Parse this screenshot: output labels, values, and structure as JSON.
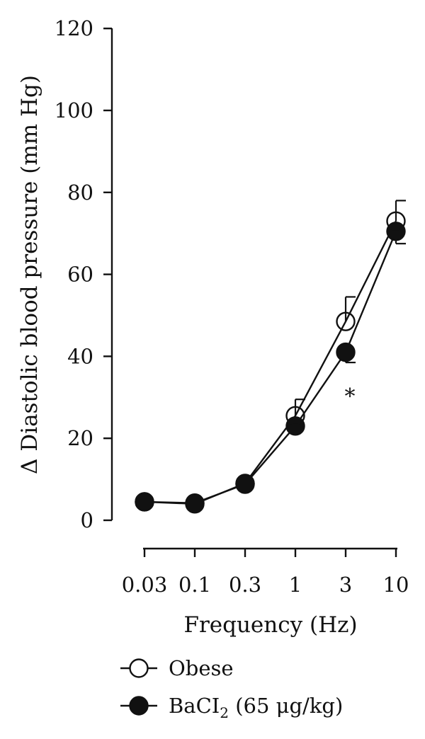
{
  "chart_data": {
    "type": "line",
    "xlabel": "Frequency (Hz)",
    "ylabel": "Δ Diastolic blood pressure (mm Hg)",
    "categories": [
      "0.03",
      "0.1",
      "0.3",
      "1",
      "3",
      "10"
    ],
    "ylim": [
      0,
      120
    ],
    "yticks": [
      "0",
      "20",
      "40",
      "60",
      "80",
      "100",
      "120"
    ],
    "grid": false,
    "legend_position": "bottom-left",
    "series": [
      {
        "name": "Obese",
        "marker": "open-circle",
        "values": [
          4.5,
          4.0,
          9.0,
          25.5,
          48.5,
          73.0
        ],
        "error": [
          0,
          0,
          0,
          4.0,
          6.0,
          5.0
        ]
      },
      {
        "name": "BaCI",
        "name_subscript": "2",
        "name_suffix": " (65 μg/kg)",
        "marker": "filled-circle",
        "values": [
          4.5,
          4.2,
          8.8,
          23.0,
          41.0,
          70.5
        ],
        "error": [
          0,
          0,
          0,
          0,
          2.5,
          3.0
        ],
        "error_direction": "down"
      }
    ],
    "annotations": [
      {
        "text": "*",
        "category": "3",
        "y": 28.5
      }
    ],
    "colors": {
      "line": "#111111",
      "filled": "#111111",
      "open": "#ffffff"
    }
  }
}
